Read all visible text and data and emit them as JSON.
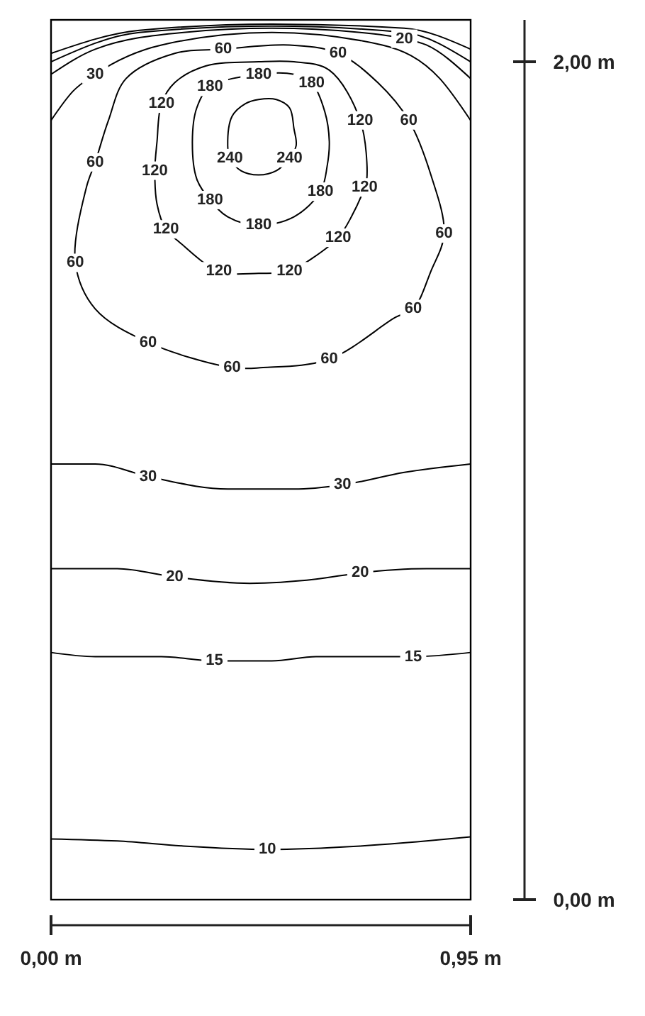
{
  "chart_data": {
    "type": "line",
    "xlim": [
      0,
      0.95
    ],
    "ylim": [
      0,
      2.1
    ],
    "xticks": [
      {
        "value": 0,
        "label": "0,00 m"
      },
      {
        "value": 0.95,
        "label": "0,95 m"
      }
    ],
    "yticks": [
      {
        "value": 0,
        "label": "0,00 m"
      },
      {
        "value": 2,
        "label": "2,00 m"
      }
    ],
    "series": [
      {
        "color": "#000000",
        "x": [
          0,
          0.15,
          0.3,
          0.49,
          0.7,
          0.85,
          0.95
        ],
        "values": [
          0.145,
          0.14,
          0.128,
          0.12,
          0.128,
          0.14,
          0.15
        ]
      },
      {
        "color": "#000000",
        "x": [
          0,
          0.1,
          0.25,
          0.37,
          0.5,
          0.6,
          0.82,
          0.95
        ],
        "values": [
          0.59,
          0.58,
          0.58,
          0.57,
          0.57,
          0.58,
          0.58,
          0.59
        ]
      },
      {
        "color": "#000000",
        "x": [
          0,
          0.15,
          0.28,
          0.45,
          0.6,
          0.7,
          0.85,
          0.95
        ],
        "values": [
          0.79,
          0.79,
          0.77,
          0.755,
          0.765,
          0.78,
          0.79,
          0.79
        ]
      },
      {
        "color": "#000000",
        "x": [
          0,
          0.1,
          0.22,
          0.4,
          0.55,
          0.66,
          0.8,
          0.95
        ],
        "values": [
          1.04,
          1.04,
          1.01,
          0.98,
          0.98,
          0.99,
          1.02,
          1.04
        ]
      },
      {
        "color": "#000000",
        "x": [
          0,
          0.05,
          0.1,
          0.25,
          0.5,
          0.75,
          0.88,
          0.95
        ],
        "values": [
          1.86,
          1.93,
          1.97,
          2.04,
          2.07,
          2.04,
          1.96,
          1.86
        ]
      },
      {
        "color": "#000000",
        "x": [
          0,
          0.1,
          0.3,
          0.5,
          0.7,
          0.8,
          0.85,
          0.95
        ],
        "values": [
          1.97,
          2.03,
          2.07,
          2.08,
          2.07,
          2.055,
          2.04,
          1.96
        ]
      },
      {
        "color": "#000000",
        "x": [
          0,
          0.2,
          0.5,
          0.8,
          0.95
        ],
        "values": [
          2.0,
          2.07,
          2.085,
          2.07,
          2.0
        ]
      },
      {
        "color": "#000000",
        "x": [
          0,
          0.2,
          0.5,
          0.8,
          0.95
        ],
        "values": [
          2.02,
          2.075,
          2.09,
          2.08,
          2.03
        ]
      }
    ],
    "annotations": [
      {
        "text": "10",
        "x": 0.49,
        "y": 0.12
      },
      {
        "text": "15",
        "x": 0.37,
        "y": 0.57
      },
      {
        "text": "15",
        "x": 0.82,
        "y": 0.58
      },
      {
        "text": "20",
        "x": 0.28,
        "y": 0.77
      },
      {
        "text": "20",
        "x": 0.7,
        "y": 0.78
      },
      {
        "text": "30",
        "x": 0.22,
        "y": 1.01
      },
      {
        "text": "30",
        "x": 0.66,
        "y": 0.99
      },
      {
        "text": "30",
        "x": 0.1,
        "y": 1.97
      },
      {
        "text": "20",
        "x": 0.8,
        "y": 2.055
      },
      "60",
      "60",
      "60",
      "60",
      "60",
      "60",
      "60",
      "60",
      "60",
      "60",
      "120",
      "120",
      "120",
      "120",
      "120",
      "120",
      "120",
      "120",
      "180",
      "180",
      "180",
      "180",
      "180",
      "180",
      "240",
      "240"
    ]
  }
}
